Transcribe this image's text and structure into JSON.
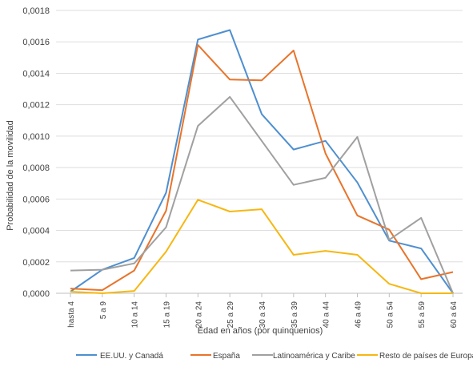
{
  "chart_data": {
    "type": "line",
    "title": "",
    "xlabel": "Edad en años (por quinquenios)",
    "ylabel": "Probabilidad de la movilidad",
    "categories": [
      "hasta 4",
      "5 a 9",
      "10 a 14",
      "15 a 19",
      "20 a 24",
      "25 a 29",
      "30 a 34",
      "35 a 39",
      "40 a 44",
      "46 a 49",
      "50 a 54",
      "55 a 59",
      "60 a 64"
    ],
    "y_ticks": [
      "0,0000",
      "0,0002",
      "0,0004",
      "0,0006",
      "0,0008",
      "0,0010",
      "0,0012",
      "0,0014",
      "0,0016",
      "0,0018"
    ],
    "ylim": [
      0,
      0.0018
    ],
    "grid": true,
    "legend_position": "bottom",
    "series": [
      {
        "name": "EE.UU. y Canadá",
        "color": "#4e8fd0",
        "values": [
          1e-05,
          0.00015,
          0.000225,
          0.00064,
          0.001615,
          0.001675,
          0.00114,
          0.000915,
          0.00097,
          0.000705,
          0.000335,
          0.000285,
          0.0
        ]
      },
      {
        "name": "España",
        "color": "#e8742b",
        "values": [
          3e-05,
          2e-05,
          0.000145,
          0.000525,
          0.00158,
          0.00136,
          0.001355,
          0.001545,
          0.00089,
          0.000495,
          0.000405,
          9e-05,
          0.000135
        ]
      },
      {
        "name": "Latinoamérica y Caribe",
        "color": "#a0a0a0",
        "values": [
          0.000145,
          0.00015,
          0.00019,
          0.00042,
          0.001065,
          0.00125,
          0.00097,
          0.00069,
          0.000735,
          0.000995,
          0.00034,
          0.00048,
          0.0
        ]
      },
      {
        "name": "Resto de países de Europa",
        "color": "#f6b711",
        "values": [
          1e-05,
          0.0,
          1.5e-05,
          0.000265,
          0.000595,
          0.00052,
          0.000535,
          0.000245,
          0.00027,
          0.000245,
          6e-05,
          0.0,
          0.0
        ]
      }
    ]
  }
}
